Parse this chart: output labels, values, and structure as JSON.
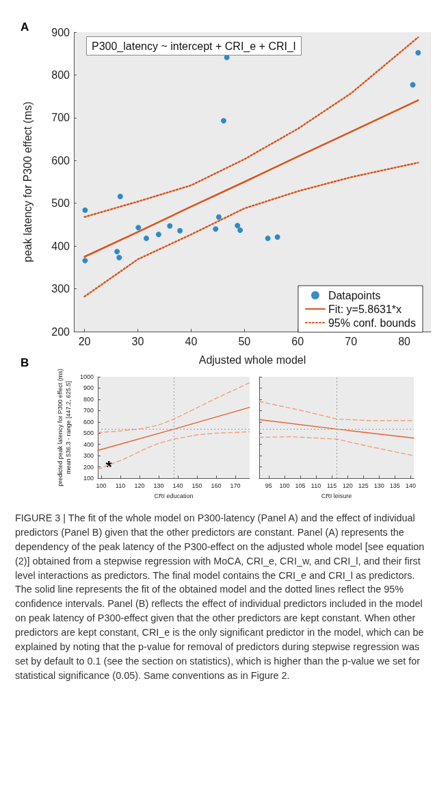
{
  "chart_data": [
    {
      "type": "scatter",
      "title": "P300_latency ~ intercept + CRI_e + CRI_l",
      "xlabel": "Adjusted whole model",
      "ylabel": "peak latency for P300 effect (ms)",
      "annotations": [
        "A",
        "FIGURE 3 | The fit of the whole model on P300-latency (Panel A) and the effect of individual predictors (Panel B) given that the other predictors are constant. Panel (A) represents the dependency of the peak latency of the P300-effect on the adjusted whole model [see equation (2)] obtained from a stepwise regression with MoCA, CRI_e, CRI_w, and CRI_l, and their first level interactions as predictors. The final model contains the CRI_e and CRI_l as predictors. The solid line represents the fit of the obtained model and the dotted lines reflect the 95% confidence intervals. Panel (B) reflects the effect of individual predictors included in the model on peak latency of P300-effect given that the other predictors are kept constant. When other predictors are kept constant, CRI_e is the only significant predictor in the model, which can be explained by noting that the p-value for removal of predictors during stepwise regression was set by default to 0.1 (see the section on statistics), which is higher than the p-value we set for statistical significance (0.05). Same conventions as in Figure 2."
      ],
      "xlim": [
        18,
        85
      ],
      "xticks": [
        20,
        30,
        40,
        50,
        60,
        70,
        80
      ],
      "ylim": [
        200,
        900
      ],
      "yticks": [
        200,
        300,
        400,
        500,
        600,
        700,
        800,
        900
      ],
      "grid": false,
      "legend": "bottom right",
      "series": [
        {
          "name": "Datapoints",
          "marker": "circle",
          "color": "#0072bd",
          "x": [
            20.1,
            20.1,
            26.1,
            26.5,
            26.7,
            30.1,
            31.6,
            33.9,
            36.0,
            37.9,
            44.6,
            45.2,
            46.1,
            46.7,
            48.7,
            49.2,
            54.4,
            56.2,
            81.6,
            82.6
          ],
          "values": [
            366,
            484,
            387,
            373,
            516,
            443,
            418,
            427,
            447,
            436,
            440,
            468,
            693,
            841,
            448,
            437,
            418,
            421,
            777,
            852
          ]
        },
        {
          "name": "Fit: y=5.8631*x",
          "type": "line",
          "marker": "none",
          "line_style": "solid",
          "color": "#d95319",
          "x": [
            20,
            30,
            40,
            50,
            60,
            70,
            82.6
          ],
          "values": [
            375,
            433,
            492,
            550,
            609,
            667,
            741
          ]
        },
        {
          "name": "95% conf. bounds",
          "type": "line",
          "marker": "none",
          "line_style": "dotted",
          "color": "#d95319",
          "x": [
            20,
            30,
            40,
            50,
            60,
            70,
            82.6
          ],
          "values": [
            468,
            504,
            542,
            603,
            674,
            757,
            888
          ]
        },
        {
          "type": "line",
          "marker": "none",
          "line_style": "dotted",
          "color": "#d95319",
          "x": [
            20,
            30,
            40,
            50,
            60,
            70,
            82.6
          ],
          "values": [
            282,
            369,
            427,
            488,
            528,
            561,
            595
          ]
        }
      ]
    },
    {
      "type": "line",
      "xlabel": "CRI education",
      "ylabel": "predicted peak latency for P300 effect (ms)\nmean 536.3 - range [447.2, 625.5]",
      "annotations": [
        "B",
        {
          "text": "*",
          "x": 104,
          "y": 200
        }
      ],
      "xlim": [
        98.2,
        177.5
      ],
      "xticks": [
        100,
        110,
        120,
        130,
        140,
        150,
        160,
        170
      ],
      "ylim": [
        100,
        1000
      ],
      "yticks": [
        100,
        200,
        300,
        400,
        500,
        600,
        700,
        800,
        900,
        1000
      ],
      "grid": false,
      "legend": false,
      "marker": "none",
      "ref_lines": [
        {
          "axis": "y",
          "value": 536.3,
          "color": "#999999",
          "line_style": "dotted"
        },
        {
          "axis": "x",
          "value": 138,
          "color": "#999999",
          "line_style": "dotted"
        }
      ],
      "series": [
        {
          "line_style": "solid",
          "color": "#e8602c",
          "x": [
            98.2,
            138,
            177.5
          ],
          "values": [
            347,
            536,
            729
          ]
        },
        {
          "line_style": "dashed",
          "color": "#f0a07a",
          "x": [
            98.2,
            110,
            120,
            130,
            138,
            147,
            159,
            177.5
          ],
          "values": [
            505,
            520,
            537,
            572,
            625,
            700,
            801,
            948
          ]
        },
        {
          "line_style": "dashed",
          "color": "#f0a07a",
          "x": [
            98.2,
            111.4,
            123.3,
            130,
            138,
            150,
            159,
            177.5
          ],
          "values": [
            180,
            266,
            363,
            410,
            447,
            485,
            499,
            512
          ]
        }
      ]
    },
    {
      "type": "line",
      "xlabel": "CRI leisure",
      "tick_labels": "x",
      "xlim": [
        92,
        141
      ],
      "xticks": [
        95,
        100,
        105,
        110,
        115,
        120,
        125,
        130,
        135,
        140
      ],
      "ylim": [
        100,
        1000
      ],
      "yticks": [
        100,
        200,
        300,
        400,
        500,
        600,
        700,
        800,
        900,
        1000
      ],
      "grid": false,
      "legend": false,
      "marker": "none",
      "ref_lines": [
        {
          "axis": "y",
          "value": 536.3,
          "color": "#999999",
          "line_style": "dotted"
        },
        {
          "axis": "x",
          "value": 116.6,
          "color": "#999999",
          "line_style": "dotted"
        }
      ],
      "series": [
        {
          "line_style": "solid",
          "color": "#e8602c",
          "x": [
            92,
            116.6,
            141
          ],
          "values": [
            620,
            536,
            456
          ]
        },
        {
          "line_style": "dashed",
          "color": "#f0a07a",
          "x": [
            92,
            105.9,
            116.6,
            127.6,
            141
          ],
          "values": [
            781,
            698,
            625,
            611,
            611
          ]
        },
        {
          "line_style": "dashed",
          "color": "#f0a07a",
          "x": [
            92,
            102.3,
            116.6,
            127.6,
            141
          ],
          "values": [
            463,
            468,
            447,
            378,
            300
          ]
        }
      ]
    }
  ]
}
